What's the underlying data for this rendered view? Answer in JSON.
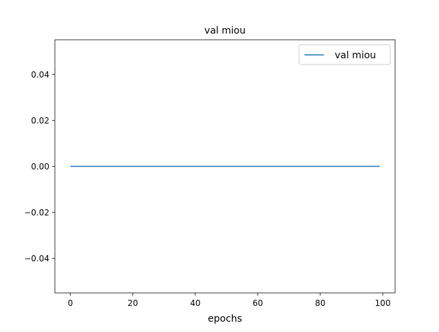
{
  "chart_data": {
    "type": "line",
    "title": "val miou",
    "xlabel": "epochs",
    "ylabel": "",
    "xlim": [
      -4.95,
      103.95
    ],
    "ylim": [
      -0.055,
      0.055
    ],
    "x_ticks": [
      0,
      20,
      40,
      60,
      80,
      100
    ],
    "x_tick_labels": [
      "0",
      "20",
      "40",
      "60",
      "80",
      "100"
    ],
    "y_ticks": [
      -0.04,
      -0.02,
      0.0,
      0.02,
      0.04
    ],
    "y_tick_labels": [
      "−0.04",
      "−0.02",
      "0.00",
      "0.02",
      "0.04"
    ],
    "grid": false,
    "legend": "top-right",
    "series": [
      {
        "name": "val miou",
        "color": "#1f77b4",
        "x": [
          0,
          99
        ],
        "y": [
          0.0,
          0.0
        ]
      }
    ]
  }
}
